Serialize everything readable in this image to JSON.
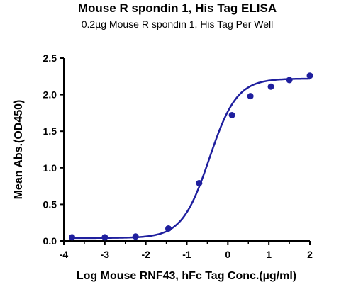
{
  "chart_data": {
    "type": "scatter",
    "title": "Mouse R spondin 1, His Tag ELISA",
    "subtitle": "0.2µg Mouse R spondin 1, His Tag Per Well",
    "xlabel": "Log Mouse RNF43, hFc Tag Conc.(µg/ml)",
    "ylabel": "Mean Abs.(OD450)",
    "xlim": [
      -4,
      2
    ],
    "ylim": [
      0,
      2.5
    ],
    "xticks": [
      -4,
      -3,
      -2,
      -1,
      0,
      1,
      2
    ],
    "yticks": [
      0.0,
      0.5,
      1.0,
      1.5,
      2.0,
      2.5
    ],
    "xtick_labels": [
      "-4",
      "-3",
      "-2",
      "-1",
      "0",
      "1",
      "2"
    ],
    "ytick_labels": [
      "0.0",
      "0.5",
      "1.0",
      "1.5",
      "2.0",
      "2.5"
    ],
    "grid": false,
    "color": "#1f1f9e",
    "series": [
      {
        "x": [
          -3.8,
          -3.0,
          -2.25,
          -1.45,
          -0.7,
          0.1,
          0.55,
          1.05,
          1.5,
          2.0
        ],
        "y": [
          0.05,
          0.05,
          0.06,
          0.17,
          0.79,
          1.72,
          1.98,
          2.11,
          2.2,
          2.26
        ]
      }
    ],
    "fit_curve": {
      "model": "4PL",
      "bottom": 0.04,
      "top": 2.22,
      "log_ec50": -0.45,
      "hill_slope": 1.3
    }
  }
}
